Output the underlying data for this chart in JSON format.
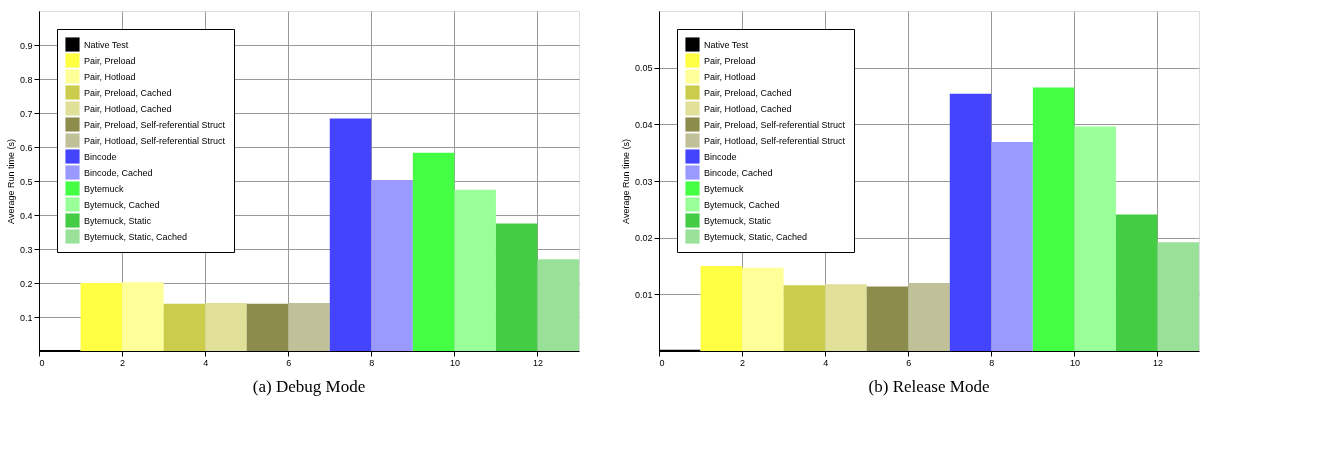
{
  "chart_data": [
    {
      "type": "bar",
      "title": "(a) Debug Mode",
      "ylabel": "Average Run time (s)",
      "xlim": [
        0,
        13
      ],
      "xticks": [
        0,
        2,
        4,
        6,
        8,
        10,
        12
      ],
      "ylim": [
        0,
        1
      ],
      "yticks": [
        0.1,
        0.2,
        0.3,
        0.4,
        0.5,
        0.6,
        0.7,
        0.8,
        0.9
      ],
      "grid": true,
      "legend": "top left",
      "series": [
        {
          "name": "Native Test",
          "color": "#000000",
          "x": [
            0.5
          ],
          "values": [
            0.003
          ]
        },
        {
          "name": "Pair, Preload",
          "color": "#ffff44",
          "x": [
            1.5
          ],
          "values": [
            0.2
          ]
        },
        {
          "name": "Pair, Hotload",
          "color": "#ffff99",
          "x": [
            2.5
          ],
          "values": [
            0.202
          ]
        },
        {
          "name": "Pair, Preload, Cached",
          "color": "#cccc4c",
          "x": [
            3.5
          ],
          "values": [
            0.139
          ]
        },
        {
          "name": "Pair, Hotload, Cached",
          "color": "#e0e099",
          "x": [
            4.5
          ],
          "values": [
            0.141
          ]
        },
        {
          "name": "Pair, Preload, Self-referential Struct",
          "color": "#8c8c4c",
          "x": [
            5.5
          ],
          "values": [
            0.139
          ]
        },
        {
          "name": "Pair, Hotload, Self-referential Struct",
          "color": "#c0c099",
          "x": [
            6.5
          ],
          "values": [
            0.141
          ]
        },
        {
          "name": "Bincode",
          "color": "#4444ff",
          "x": [
            7.5
          ],
          "values": [
            0.684
          ]
        },
        {
          "name": "Bincode, Cached",
          "color": "#9999ff",
          "x": [
            8.5
          ],
          "values": [
            0.503
          ]
        },
        {
          "name": "Bytemuck",
          "color": "#44ff44",
          "x": [
            9.5
          ],
          "values": [
            0.583
          ]
        },
        {
          "name": "Bytemuck, Cached",
          "color": "#99ff99",
          "x": [
            10.5
          ],
          "values": [
            0.474
          ]
        },
        {
          "name": "Bytemuck, Static",
          "color": "#44cc44",
          "x": [
            11.5
          ],
          "values": [
            0.375
          ]
        },
        {
          "name": "Bytemuck, Static, Cached",
          "color": "#99e099",
          "x": [
            12.5
          ],
          "values": [
            0.27
          ]
        }
      ]
    },
    {
      "type": "bar",
      "title": "(b) Release Mode",
      "ylabel": "Average Run time (s)",
      "xlim": [
        0,
        13
      ],
      "xticks": [
        0,
        2,
        4,
        6,
        8,
        10,
        12
      ],
      "ylim": [
        0,
        0.06
      ],
      "yticks": [
        0.01,
        0.02,
        0.03,
        0.04,
        0.05
      ],
      "grid": true,
      "legend": "top left",
      "series": [
        {
          "name": "Native Test",
          "color": "#000000",
          "x": [
            0.5
          ],
          "values": [
            0.0002
          ]
        },
        {
          "name": "Pair, Preload",
          "color": "#ffff44",
          "x": [
            1.5
          ],
          "values": [
            0.015
          ]
        },
        {
          "name": "Pair, Hotload",
          "color": "#ffff99",
          "x": [
            2.5
          ],
          "values": [
            0.0147
          ]
        },
        {
          "name": "Pair, Preload, Cached",
          "color": "#cccc4c",
          "x": [
            3.5
          ],
          "values": [
            0.0116
          ]
        },
        {
          "name": "Pair, Hotload, Cached",
          "color": "#e0e099",
          "x": [
            4.5
          ],
          "values": [
            0.0118
          ]
        },
        {
          "name": "Pair, Preload, Self-referential Struct",
          "color": "#8c8c4c",
          "x": [
            5.5
          ],
          "values": [
            0.0114
          ]
        },
        {
          "name": "Pair, Hotload, Self-referential Struct",
          "color": "#c0c099",
          "x": [
            6.5
          ],
          "values": [
            0.012
          ]
        },
        {
          "name": "Bincode",
          "color": "#4444ff",
          "x": [
            7.5
          ],
          "values": [
            0.0454
          ]
        },
        {
          "name": "Bincode, Cached",
          "color": "#9999ff",
          "x": [
            8.5
          ],
          "values": [
            0.0369
          ]
        },
        {
          "name": "Bytemuck",
          "color": "#44ff44",
          "x": [
            9.5
          ],
          "values": [
            0.0465
          ]
        },
        {
          "name": "Bytemuck, Cached",
          "color": "#99ff99",
          "x": [
            10.5
          ],
          "values": [
            0.0396
          ]
        },
        {
          "name": "Bytemuck, Static",
          "color": "#44cc44",
          "x": [
            11.5
          ],
          "values": [
            0.0241
          ]
        },
        {
          "name": "Bytemuck, Static, Cached",
          "color": "#99e099",
          "x": [
            12.5
          ],
          "values": [
            0.0192
          ]
        }
      ]
    }
  ]
}
